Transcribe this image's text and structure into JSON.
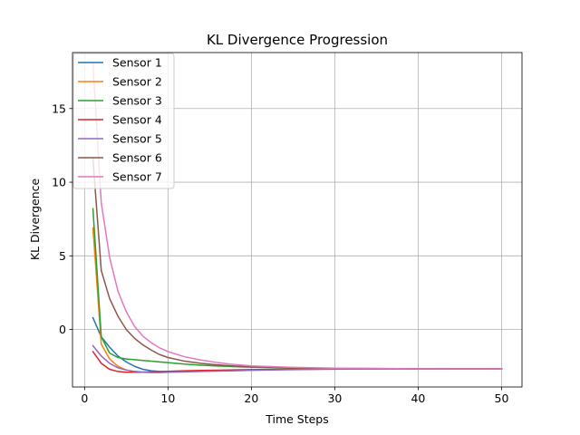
{
  "chart_data": {
    "type": "line",
    "title": "KL Divergence Progression",
    "xlabel": "Time Steps",
    "ylabel": "KL Divergence",
    "xlim": [
      -1.45,
      52.45
    ],
    "ylim": [
      -3.9,
      18.8
    ],
    "xticks": [
      0,
      10,
      20,
      30,
      40,
      50
    ],
    "yticks": [
      0,
      5,
      10,
      15
    ],
    "grid": true,
    "legend_position": "upper-left",
    "x": [
      1,
      2,
      3,
      4,
      5,
      6,
      7,
      8,
      9,
      10,
      12,
      14,
      16,
      18,
      20,
      25,
      30,
      35,
      40,
      45,
      50
    ],
    "series": [
      {
        "name": "Sensor 1",
        "color": "#1f77b4",
        "values": [
          0.8,
          -0.5,
          -1.2,
          -1.8,
          -2.2,
          -2.5,
          -2.7,
          -2.8,
          -2.85,
          -2.85,
          -2.85,
          -2.82,
          -2.8,
          -2.78,
          -2.75,
          -2.7,
          -2.68,
          -2.67,
          -2.67,
          -2.67,
          -2.67
        ]
      },
      {
        "name": "Sensor 2",
        "color": "#ff7f0e",
        "values": [
          6.9,
          -1.0,
          -2.0,
          -2.5,
          -2.75,
          -2.85,
          -2.88,
          -2.88,
          -2.87,
          -2.85,
          -2.82,
          -2.8,
          -2.78,
          -2.76,
          -2.74,
          -2.7,
          -2.68,
          -2.67,
          -2.67,
          -2.67,
          -2.67
        ]
      },
      {
        "name": "Sensor 3",
        "color": "#2ca02c",
        "values": [
          8.2,
          -0.5,
          -1.6,
          -1.9,
          -2.0,
          -2.05,
          -2.1,
          -2.15,
          -2.2,
          -2.25,
          -2.35,
          -2.42,
          -2.48,
          -2.52,
          -2.56,
          -2.62,
          -2.65,
          -2.66,
          -2.67,
          -2.67,
          -2.67
        ]
      },
      {
        "name": "Sensor 4",
        "color": "#d62728",
        "values": [
          -1.5,
          -2.3,
          -2.7,
          -2.85,
          -2.9,
          -2.9,
          -2.9,
          -2.88,
          -2.86,
          -2.84,
          -2.8,
          -2.78,
          -2.76,
          -2.74,
          -2.72,
          -2.69,
          -2.68,
          -2.67,
          -2.67,
          -2.67,
          -2.67
        ]
      },
      {
        "name": "Sensor 5",
        "color": "#9467bd",
        "values": [
          -1.1,
          -1.8,
          -2.3,
          -2.6,
          -2.75,
          -2.85,
          -2.9,
          -2.92,
          -2.92,
          -2.9,
          -2.88,
          -2.85,
          -2.82,
          -2.8,
          -2.77,
          -2.72,
          -2.69,
          -2.68,
          -2.67,
          -2.67,
          -2.67
        ]
      },
      {
        "name": "Sensor 6",
        "color": "#8c564b",
        "values": [
          11.6,
          4.0,
          2.1,
          0.9,
          0.0,
          -0.6,
          -1.05,
          -1.4,
          -1.7,
          -1.9,
          -2.15,
          -2.3,
          -2.4,
          -2.48,
          -2.53,
          -2.6,
          -2.63,
          -2.65,
          -2.66,
          -2.67,
          -2.67
        ]
      },
      {
        "name": "Sensor 7",
        "color": "#e377c2",
        "values": [
          18.1,
          8.6,
          4.9,
          2.6,
          1.2,
          0.2,
          -0.45,
          -0.9,
          -1.25,
          -1.5,
          -1.85,
          -2.08,
          -2.25,
          -2.38,
          -2.47,
          -2.57,
          -2.62,
          -2.65,
          -2.66,
          -2.67,
          -2.67
        ]
      }
    ]
  }
}
